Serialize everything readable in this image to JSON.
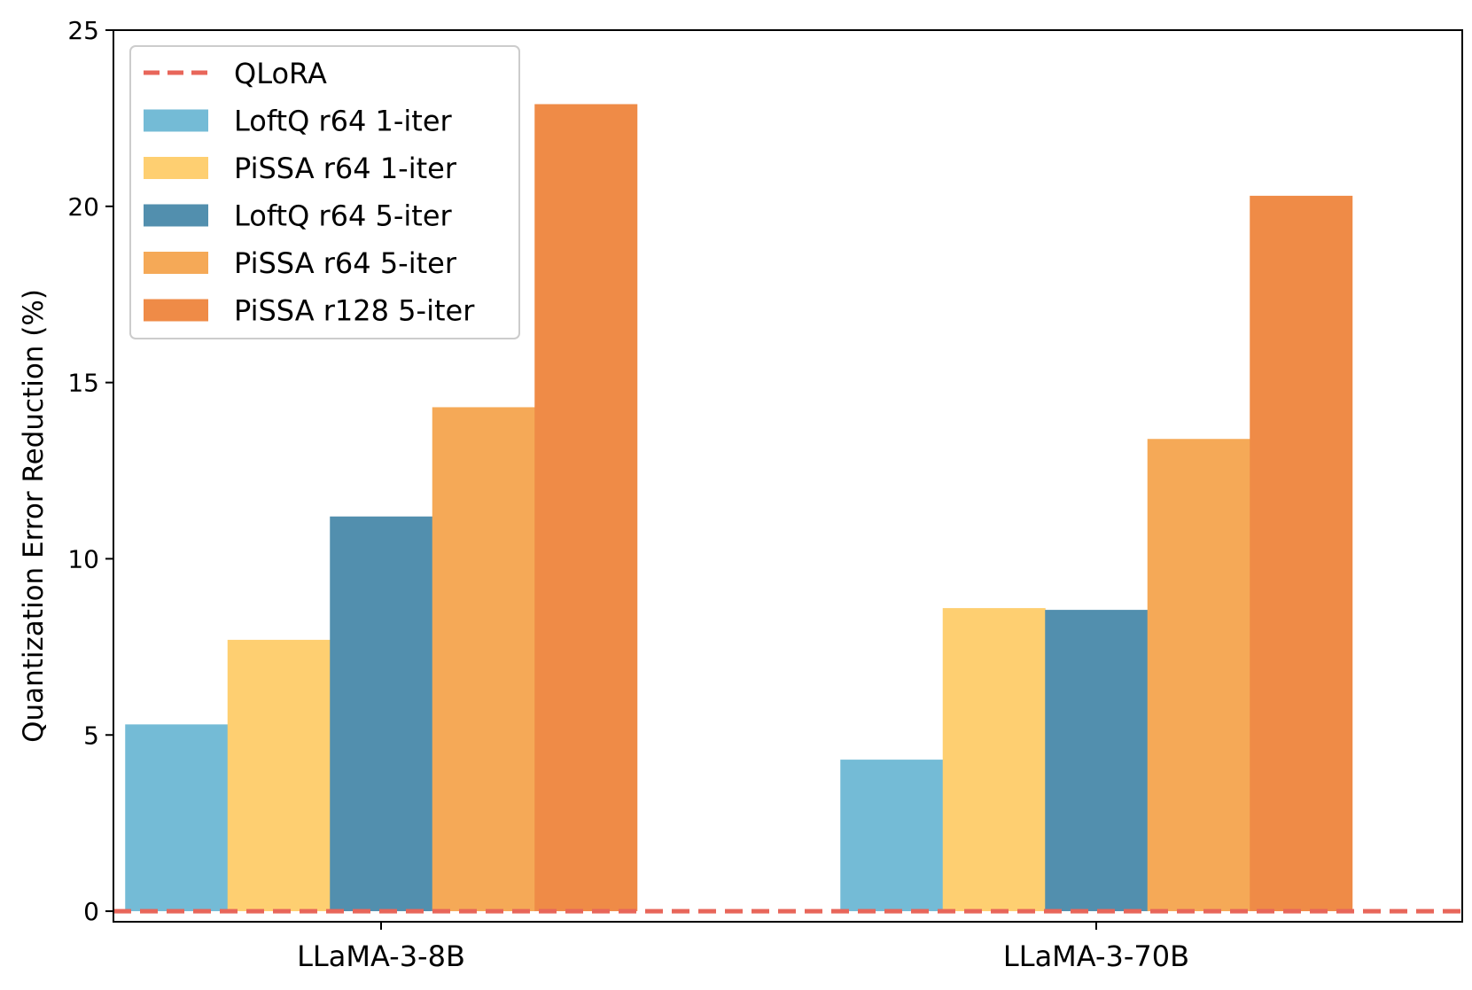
{
  "chart_data": {
    "type": "bar",
    "title": "",
    "xlabel": "",
    "ylabel": "Quantization Error Reduction (%)",
    "ylim": [
      -0.3,
      25
    ],
    "yticks": [
      0,
      5,
      10,
      15,
      20,
      25
    ],
    "categories": [
      "LLaMA-3-8B",
      "LLaMA-3-70B"
    ],
    "reference_line": {
      "name": "QLoRA",
      "value": 0,
      "color": "#e8665a",
      "style": "dashed"
    },
    "series": [
      {
        "name": "LoftQ r64 1-iter",
        "color": "#74bbd6",
        "values": [
          5.3,
          4.3
        ]
      },
      {
        "name": "PiSSA r64 1-iter",
        "color": "#fecf71",
        "values": [
          7.7,
          8.6
        ]
      },
      {
        "name": "LoftQ r64 5-iter",
        "color": "#528fae",
        "values": [
          11.2,
          8.55
        ]
      },
      {
        "name": "PiSSA r64 5-iter",
        "color": "#f5a957",
        "values": [
          14.3,
          13.4
        ]
      },
      {
        "name": "PiSSA r128 5-iter",
        "color": "#ef8b47",
        "values": [
          22.9,
          20.3
        ]
      }
    ],
    "legend_position": "upper-left",
    "grid": false
  }
}
